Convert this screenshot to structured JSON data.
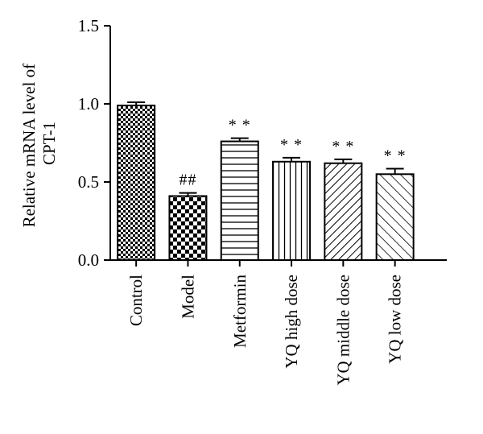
{
  "chart_data": {
    "type": "bar",
    "ylabel_lines": [
      "Relative mRNA level of",
      "CPT-1"
    ],
    "xlabel": "",
    "ylim": [
      0,
      1.5
    ],
    "yticks": [
      0.0,
      0.5,
      1.0,
      1.5
    ],
    "ytick_labels": [
      "0.0",
      "0.5",
      "1.0",
      "1.5"
    ],
    "grid": false,
    "categories": [
      "Control",
      "Model",
      "Metformin",
      "YQ high dose",
      "YQ middle dose",
      "YQ low dose"
    ],
    "values": [
      0.99,
      0.41,
      0.76,
      0.63,
      0.62,
      0.55
    ],
    "errors": [
      0.02,
      0.02,
      0.02,
      0.025,
      0.025,
      0.035
    ],
    "annotations": [
      "",
      "##",
      "* *",
      "* *",
      "* *",
      "* *"
    ],
    "fill_patterns": [
      "fine-checker",
      "coarse-checker",
      "horizontal-lines",
      "vertical-lines",
      "diagonal-lines-dense",
      "diagonal-lines-sparse"
    ],
    "bar_color": "#000000",
    "background_color": "#ffffff"
  }
}
